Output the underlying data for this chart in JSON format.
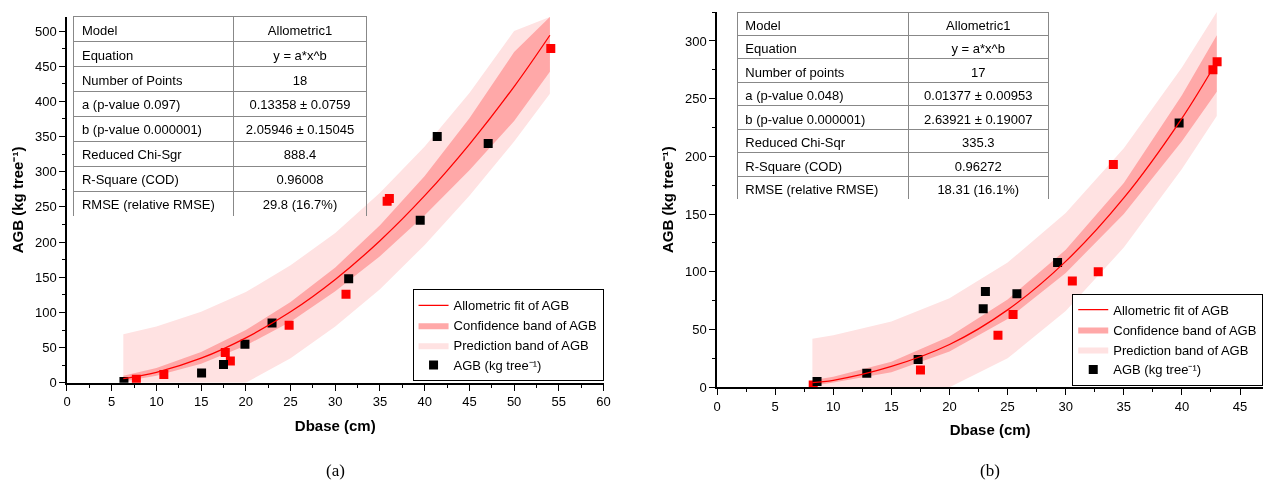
{
  "chart_data": [
    {
      "type": "scatter",
      "xlabel": "Dbase (cm)",
      "ylabel": "AGB (kg tree⁻¹)",
      "xlim": [
        0,
        60
      ],
      "ylim": [
        0,
        520
      ],
      "xticks": [
        0,
        5,
        10,
        15,
        20,
        25,
        30,
        35,
        40,
        45,
        50,
        55,
        60
      ],
      "yticks": [
        0,
        50,
        100,
        150,
        200,
        250,
        300,
        350,
        400,
        450,
        500
      ],
      "legend": "bottom right",
      "series": [
        {
          "name": "Allometric fit of AGB",
          "type": "line",
          "color": "#ff0000",
          "x": [
            6.3,
            10,
            15,
            20,
            25,
            30,
            35,
            40,
            45,
            50,
            54
          ],
          "values": [
            6,
            15,
            35,
            64,
            101,
            147,
            202,
            266,
            339,
            421,
            494
          ]
        },
        {
          "name": "Confidence band of AGB",
          "type": "area",
          "color": "#ffa8a8",
          "x": [
            6.3,
            10,
            15,
            20,
            25,
            30,
            35,
            40,
            45,
            50,
            54
          ],
          "values": [
            null,
            null,
            null,
            null,
            null,
            null,
            null,
            null,
            null,
            null,
            null
          ],
          "lower": [
            2,
            10,
            27,
            53,
            87,
            130,
            180,
            238,
            302,
            372,
            442
          ],
          "upper": [
            10,
            21,
            44,
            75,
            115,
            164,
            224,
            294,
            376,
            470,
            520
          ]
        },
        {
          "name": "Prediction band of AGB",
          "type": "area",
          "color": "#ffe2e2",
          "x": [
            6.3,
            10,
            15,
            20,
            25,
            30,
            35,
            40,
            45,
            50,
            54
          ],
          "values": [
            null,
            null,
            null,
            null,
            null,
            null,
            null,
            null,
            null,
            null,
            null
          ],
          "lower": [
            0,
            0,
            0,
            0,
            35,
            80,
            133,
            196,
            266,
            343,
            411
          ],
          "upper": [
            69,
            80,
            101,
            129,
            167,
            213,
            270,
            336,
            412,
            500,
            520
          ]
        },
        {
          "name": "AGB (kg tree⁻¹)",
          "type": "scatter",
          "marker": "square",
          "color": "#000000",
          "x": [
            6.37,
            15.05,
            17.5,
            19.9,
            22.93,
            31.5,
            39.5,
            41.4,
            47.1
          ],
          "values": [
            2,
            14,
            26,
            55,
            85,
            148,
            231,
            350,
            340
          ]
        },
        {
          "type": "scatter",
          "marker": "square",
          "color": "#ff0000",
          "x": [
            7.76,
            10.83,
            17.7,
            18.27,
            24.84,
            31.2,
            35.8,
            36.05,
            54.1
          ],
          "values": [
            5,
            12,
            43,
            31,
            82,
            126,
            258,
            262,
            475
          ]
        }
      ],
      "annotations": [
        "Model",
        "Allometric1",
        "Equation",
        "y = a*x^b",
        "Number of Points",
        "18",
        "a (p-value 0.097)",
        "0.13358 ± 0.0759",
        "b (p-value 0.000001)",
        "2.05946 ± 0.15045",
        "Reduced Chi-Sgr",
        "888.4",
        "R-Square (COD)",
        "0.96008",
        "RMSE (relative RMSE)",
        "29.8 (16.7%)",
        "(a)"
      ]
    },
    {
      "type": "scatter",
      "xlabel": "Dbase (cm)",
      "ylabel": "AGB (kg tree⁻¹)",
      "xlim": [
        0,
        47
      ],
      "ylim": [
        0,
        325
      ],
      "xticks": [
        0,
        5,
        10,
        15,
        20,
        25,
        30,
        35,
        40,
        45
      ],
      "yticks": [
        0,
        50,
        100,
        150,
        200,
        250,
        300
      ],
      "legend": "bottom right",
      "series": [
        {
          "name": "Allometric fit of AGB",
          "type": "line",
          "color": "#ff0000",
          "x": [
            8.2,
            10,
            15,
            20,
            25,
            30,
            35,
            40,
            43
          ],
          "values": [
            4,
            6,
            18,
            37,
            67,
            109,
            164,
            233,
            282
          ]
        },
        {
          "name": "Confidence band of AGB",
          "type": "area",
          "color": "#ffa8a8",
          "x": [
            8.2,
            10,
            15,
            20,
            25,
            30,
            35,
            40,
            43
          ],
          "values": [
            null,
            null,
            null,
            null,
            null,
            null,
            null,
            null,
            null
          ],
          "lower": [
            1,
            4,
            13,
            31,
            59,
            99,
            150,
            213,
            256
          ],
          "upper": [
            6,
            9,
            22,
            44,
            76,
            119,
            177,
            253,
            305
          ]
        },
        {
          "name": "Prediction band of AGB",
          "type": "area",
          "color": "#ffe2e2",
          "x": [
            8.2,
            10,
            15,
            20,
            25,
            30,
            35,
            40,
            43
          ],
          "values": [
            null,
            null,
            null,
            null,
            null,
            null,
            null,
            null,
            null
          ],
          "lower": [
            0,
            0,
            0,
            0,
            25,
            66,
            121,
            189,
            235
          ],
          "upper": [
            42,
            45,
            57,
            77,
            108,
            151,
            207,
            277,
            325
          ]
        },
        {
          "name": "AGB (kg tree⁻¹)",
          "type": "scatter",
          "marker": "square",
          "color": "#000000",
          "x": [
            8.6,
            12.88,
            17.3,
            22.9,
            23.09,
            25.8,
            29.3,
            39.76
          ],
          "values": [
            5,
            12,
            24,
            68,
            83,
            81,
            108,
            229
          ]
        },
        {
          "type": "scatter",
          "marker": "square",
          "color": "#ff0000",
          "x": [
            8.27,
            17.5,
            24.17,
            25.47,
            30.57,
            32.8,
            34.1,
            42.67,
            43.03
          ],
          "values": [
            2,
            15,
            45,
            63,
            92,
            100,
            193,
            275,
            282
          ]
        }
      ],
      "annotations": [
        "Model",
        "Allometric1",
        "Equation",
        "y = a*x^b",
        "Number of points",
        "17",
        "a (p-value 0.048)",
        "0.01377 ± 0.00953",
        "b (p-value 0.000001)",
        "2.63921 ± 0.19007",
        "Reduced Chi-Sqr",
        "335.3",
        "R-Square (COD)",
        "0.96272",
        "RMSE (relative RMSE)",
        "18.31 (16.1%)",
        "(b)"
      ]
    }
  ]
}
